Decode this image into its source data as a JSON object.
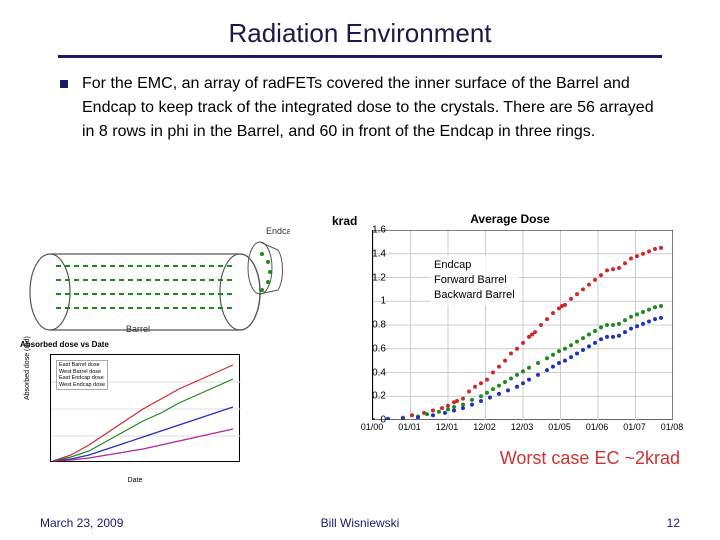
{
  "title": "Radiation Environment",
  "bullet": "For the EMC, an array of radFETs covered the inner surface of the Barrel and Endcap to keep track of the integrated dose to the crystals. There are 56 arrayed in 8 rows in phi in the Barrel, and 60 in front of the Endcap in three rings.",
  "bottom_note": "Worst case EC ~2krad",
  "footer": {
    "date": "March 23, 2009",
    "author": "Bill Wisniewski",
    "page_number": "12"
  },
  "colors": {
    "title": "#1a1a4a",
    "rule": "#1a1a6a",
    "footer_text": "#1a1a6a",
    "callout_text": "#cc3333",
    "grid": "#cccccc",
    "axis": "#000000",
    "background": "#ffffff"
  },
  "detector_diagram": {
    "labels": {
      "endcap": "Endcap",
      "barrel": "Barrel"
    }
  },
  "absorbed_plot": {
    "title": "Absorbed dose vs Date",
    "ylabel": "Absorbed dose (rad)",
    "xlabel": "Date",
    "legend": [
      "East Barrel dose",
      "West Barrel dose",
      "East Endcap dose",
      "West Endcap dose"
    ],
    "colors": [
      "#d02828",
      "#208820",
      "#2030c0",
      "#b02890"
    ]
  },
  "avg_dose_chart": {
    "type": "scatter",
    "title": "Average Dose",
    "ylabel": "krad",
    "x_tick_labels": [
      "01/00",
      "01/01",
      "12/01",
      "12/02",
      "12/03",
      "01/05",
      "01/06",
      "01/07",
      "01/08"
    ],
    "x_tick_count": 9,
    "ylim": [
      0,
      1.6
    ],
    "ytick_step": 0.2,
    "grid_color": "#cccccc",
    "axis_color": "#000000",
    "background_color": "#ffffff",
    "legend": [
      {
        "label": "Endcap",
        "color": "#d02828"
      },
      {
        "label": "Forward Barrel",
        "color": "#208820"
      },
      {
        "label": "Backward Barrel",
        "color": "#2030c0"
      }
    ],
    "marker_size": 2,
    "series": {
      "endcap": {
        "color": "#d02828",
        "points": [
          [
            0.0,
            0.0
          ],
          [
            0.05,
            0.01
          ],
          [
            0.1,
            0.02
          ],
          [
            0.13,
            0.04
          ],
          [
            0.17,
            0.06
          ],
          [
            0.2,
            0.08
          ],
          [
            0.23,
            0.1
          ],
          [
            0.25,
            0.12
          ],
          [
            0.27,
            0.15
          ],
          [
            0.28,
            0.16
          ],
          [
            0.3,
            0.18
          ],
          [
            0.32,
            0.24
          ],
          [
            0.34,
            0.28
          ],
          [
            0.36,
            0.31
          ],
          [
            0.38,
            0.34
          ],
          [
            0.4,
            0.4
          ],
          [
            0.42,
            0.45
          ],
          [
            0.44,
            0.5
          ],
          [
            0.46,
            0.56
          ],
          [
            0.48,
            0.6
          ],
          [
            0.5,
            0.65
          ],
          [
            0.52,
            0.7
          ],
          [
            0.53,
            0.72
          ],
          [
            0.54,
            0.74
          ],
          [
            0.56,
            0.8
          ],
          [
            0.58,
            0.85
          ],
          [
            0.6,
            0.9
          ],
          [
            0.62,
            0.94
          ],
          [
            0.63,
            0.96
          ],
          [
            0.64,
            0.97
          ],
          [
            0.66,
            1.02
          ],
          [
            0.68,
            1.06
          ],
          [
            0.7,
            1.1
          ],
          [
            0.72,
            1.14
          ],
          [
            0.74,
            1.18
          ],
          [
            0.76,
            1.22
          ],
          [
            0.78,
            1.26
          ],
          [
            0.8,
            1.27
          ],
          [
            0.82,
            1.28
          ],
          [
            0.84,
            1.32
          ],
          [
            0.86,
            1.36
          ],
          [
            0.88,
            1.38
          ],
          [
            0.9,
            1.4
          ],
          [
            0.92,
            1.42
          ],
          [
            0.94,
            1.44
          ],
          [
            0.96,
            1.45
          ]
        ]
      },
      "forward_barrel": {
        "color": "#208820",
        "points": [
          [
            0.0,
            0.0
          ],
          [
            0.05,
            0.01
          ],
          [
            0.1,
            0.015
          ],
          [
            0.15,
            0.03
          ],
          [
            0.18,
            0.05
          ],
          [
            0.22,
            0.07
          ],
          [
            0.25,
            0.09
          ],
          [
            0.27,
            0.11
          ],
          [
            0.3,
            0.13
          ],
          [
            0.33,
            0.17
          ],
          [
            0.36,
            0.2
          ],
          [
            0.38,
            0.23
          ],
          [
            0.4,
            0.26
          ],
          [
            0.42,
            0.29
          ],
          [
            0.44,
            0.32
          ],
          [
            0.46,
            0.35
          ],
          [
            0.48,
            0.38
          ],
          [
            0.5,
            0.41
          ],
          [
            0.52,
            0.44
          ],
          [
            0.55,
            0.48
          ],
          [
            0.58,
            0.52
          ],
          [
            0.6,
            0.55
          ],
          [
            0.62,
            0.58
          ],
          [
            0.64,
            0.6
          ],
          [
            0.66,
            0.63
          ],
          [
            0.68,
            0.66
          ],
          [
            0.7,
            0.69
          ],
          [
            0.72,
            0.72
          ],
          [
            0.74,
            0.75
          ],
          [
            0.76,
            0.78
          ],
          [
            0.78,
            0.8
          ],
          [
            0.8,
            0.8
          ],
          [
            0.82,
            0.81
          ],
          [
            0.84,
            0.84
          ],
          [
            0.86,
            0.87
          ],
          [
            0.88,
            0.89
          ],
          [
            0.9,
            0.91
          ],
          [
            0.92,
            0.93
          ],
          [
            0.94,
            0.95
          ],
          [
            0.96,
            0.96
          ]
        ]
      },
      "backward_barrel": {
        "color": "#2030c0",
        "points": [
          [
            0.0,
            0.0
          ],
          [
            0.05,
            0.005
          ],
          [
            0.1,
            0.01
          ],
          [
            0.15,
            0.02
          ],
          [
            0.2,
            0.04
          ],
          [
            0.24,
            0.06
          ],
          [
            0.27,
            0.08
          ],
          [
            0.3,
            0.1
          ],
          [
            0.33,
            0.13
          ],
          [
            0.36,
            0.16
          ],
          [
            0.39,
            0.19
          ],
          [
            0.42,
            0.22
          ],
          [
            0.45,
            0.25
          ],
          [
            0.48,
            0.28
          ],
          [
            0.5,
            0.31
          ],
          [
            0.52,
            0.34
          ],
          [
            0.55,
            0.38
          ],
          [
            0.58,
            0.42
          ],
          [
            0.6,
            0.45
          ],
          [
            0.62,
            0.48
          ],
          [
            0.64,
            0.5
          ],
          [
            0.66,
            0.53
          ],
          [
            0.68,
            0.56
          ],
          [
            0.7,
            0.59
          ],
          [
            0.72,
            0.62
          ],
          [
            0.74,
            0.65
          ],
          [
            0.76,
            0.68
          ],
          [
            0.78,
            0.7
          ],
          [
            0.8,
            0.7
          ],
          [
            0.82,
            0.71
          ],
          [
            0.84,
            0.74
          ],
          [
            0.86,
            0.77
          ],
          [
            0.88,
            0.79
          ],
          [
            0.9,
            0.81
          ],
          [
            0.92,
            0.83
          ],
          [
            0.94,
            0.85
          ],
          [
            0.96,
            0.86
          ]
        ]
      }
    }
  }
}
